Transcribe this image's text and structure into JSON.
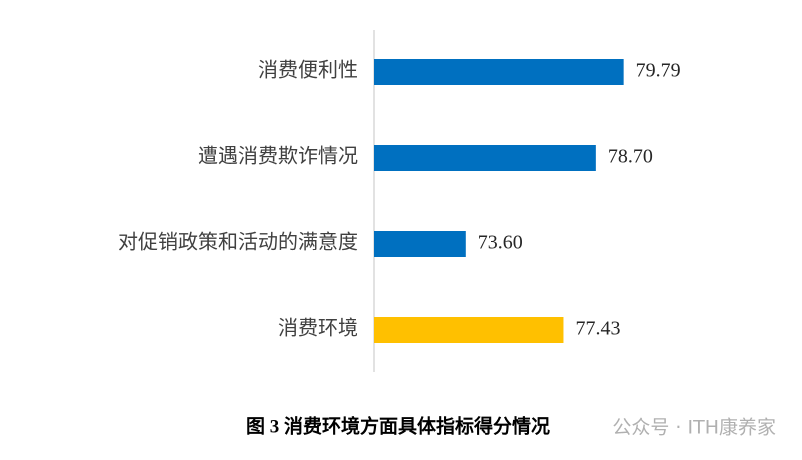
{
  "chart_data": {
    "type": "barh",
    "title": "图 3  消费环境方面具体指标得分情况",
    "categories": [
      "消费便利性",
      "遭遇消费欺诈情况",
      "对促销政策和活动的满意度",
      "消费环境"
    ],
    "values": [
      79.79,
      78.7,
      73.6,
      77.43
    ],
    "value_labels": [
      "79.79",
      "78.70",
      "73.60",
      "77.43"
    ],
    "colors": [
      "#0070c0",
      "#0070c0",
      "#0070c0",
      "#ffc000"
    ],
    "xlim": [
      70,
      86
    ],
    "watermark": "公众号 · ITH康养家"
  }
}
